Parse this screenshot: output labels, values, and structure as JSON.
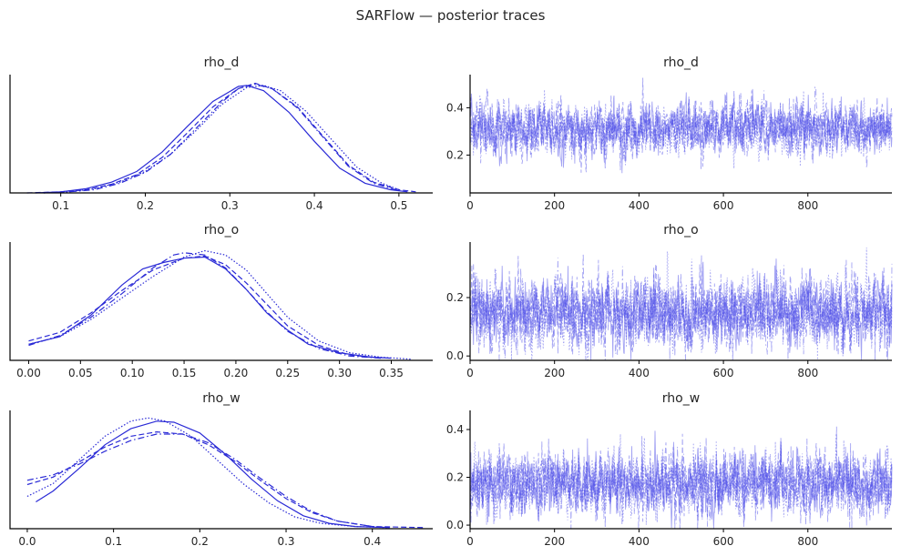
{
  "suptitle": "SARFlow — posterior traces",
  "colors": {
    "line": "#2a2ad6",
    "trace": "#4a4ae8",
    "axis": "#000000",
    "text": "#262626"
  },
  "chart_data": [
    {
      "type": "line",
      "kind": "density",
      "title": "rho_d",
      "xlim": [
        0.04,
        0.54
      ],
      "xticks": [
        0.1,
        0.2,
        0.3,
        0.4,
        0.5
      ],
      "xtick_labels": [
        "0.1",
        "0.2",
        "0.3",
        "0.4",
        "0.5"
      ],
      "ylim": [
        0,
        1.1
      ],
      "yticks": [],
      "series": [
        {
          "linestyle": "solid",
          "x": [
            0.07,
            0.1,
            0.13,
            0.16,
            0.19,
            0.22,
            0.25,
            0.28,
            0.31,
            0.32,
            0.34,
            0.37,
            0.4,
            0.43,
            0.46,
            0.49,
            0.51
          ],
          "y": [
            0.0,
            0.01,
            0.04,
            0.1,
            0.2,
            0.38,
            0.62,
            0.85,
            0.99,
            1.0,
            0.95,
            0.75,
            0.48,
            0.23,
            0.09,
            0.03,
            0.01
          ]
        },
        {
          "linestyle": "dashed",
          "x": [
            0.06,
            0.1,
            0.13,
            0.16,
            0.19,
            0.22,
            0.25,
            0.28,
            0.31,
            0.33,
            0.35,
            0.38,
            0.41,
            0.44,
            0.47,
            0.5,
            0.52
          ],
          "y": [
            0.0,
            0.01,
            0.03,
            0.08,
            0.17,
            0.33,
            0.56,
            0.8,
            0.97,
            1.02,
            0.97,
            0.8,
            0.53,
            0.26,
            0.1,
            0.03,
            0.01
          ]
        },
        {
          "linestyle": "dotted",
          "x": [
            0.08,
            0.11,
            0.14,
            0.17,
            0.2,
            0.23,
            0.26,
            0.29,
            0.32,
            0.34,
            0.36,
            0.39,
            0.42,
            0.45,
            0.48,
            0.5
          ],
          "y": [
            0.0,
            0.01,
            0.04,
            0.1,
            0.2,
            0.36,
            0.58,
            0.82,
            0.98,
            1.0,
            0.95,
            0.76,
            0.5,
            0.24,
            0.09,
            0.03
          ]
        },
        {
          "linestyle": "dashdot",
          "x": [
            0.08,
            0.11,
            0.14,
            0.17,
            0.2,
            0.23,
            0.26,
            0.29,
            0.31,
            0.33,
            0.35,
            0.38,
            0.41,
            0.44,
            0.47,
            0.5
          ],
          "y": [
            0.0,
            0.01,
            0.03,
            0.09,
            0.19,
            0.36,
            0.6,
            0.84,
            0.97,
            1.01,
            0.97,
            0.79,
            0.52,
            0.25,
            0.09,
            0.02
          ]
        }
      ]
    },
    {
      "type": "line",
      "kind": "trace",
      "title": "rho_d",
      "xlim": [
        0,
        999
      ],
      "xticks": [
        0,
        200,
        400,
        600,
        800
      ],
      "xtick_labels": [
        "0",
        "200",
        "400",
        "600",
        "800"
      ],
      "ylim": [
        0.04,
        0.54
      ],
      "yticks": [
        0.2,
        0.4
      ],
      "ytick_labels": [
        "0.2",
        "0.4"
      ],
      "mean": 0.31,
      "sd": 0.055,
      "n": 1000
    },
    {
      "type": "line",
      "kind": "density",
      "title": "rho_o",
      "xlim": [
        -0.018,
        0.39
      ],
      "xticks": [
        0.0,
        0.05,
        0.1,
        0.15,
        0.2,
        0.25,
        0.3,
        0.35
      ],
      "xtick_labels": [
        "0.00",
        "0.05",
        "0.10",
        "0.15",
        "0.20",
        "0.25",
        "0.30",
        "0.35"
      ],
      "ylim": [
        0,
        1.1
      ],
      "yticks": [],
      "series": [
        {
          "linestyle": "solid",
          "x": [
            0.0,
            0.03,
            0.06,
            0.09,
            0.11,
            0.13,
            0.15,
            0.17,
            0.19,
            0.21,
            0.23,
            0.25,
            0.27,
            0.3,
            0.33,
            0.35
          ],
          "y": [
            0.15,
            0.22,
            0.42,
            0.7,
            0.85,
            0.91,
            0.95,
            0.96,
            0.85,
            0.66,
            0.44,
            0.28,
            0.15,
            0.07,
            0.03,
            0.02
          ]
        },
        {
          "linestyle": "dashed",
          "x": [
            0.0,
            0.03,
            0.06,
            0.09,
            0.12,
            0.15,
            0.17,
            0.19,
            0.21,
            0.23,
            0.25,
            0.28,
            0.31,
            0.34
          ],
          "y": [
            0.18,
            0.26,
            0.44,
            0.65,
            0.84,
            0.95,
            0.97,
            0.89,
            0.72,
            0.52,
            0.32,
            0.14,
            0.05,
            0.02
          ]
        },
        {
          "linestyle": "dotted",
          "x": [
            0.0,
            0.03,
            0.06,
            0.09,
            0.12,
            0.15,
            0.17,
            0.19,
            0.21,
            0.23,
            0.25,
            0.28,
            0.31,
            0.34,
            0.37
          ],
          "y": [
            0.15,
            0.22,
            0.38,
            0.58,
            0.78,
            0.96,
            1.02,
            0.98,
            0.84,
            0.62,
            0.4,
            0.18,
            0.07,
            0.03,
            0.01
          ]
        },
        {
          "linestyle": "dashdot",
          "x": [
            0.0,
            0.03,
            0.06,
            0.09,
            0.12,
            0.14,
            0.15,
            0.17,
            0.19,
            0.21,
            0.23,
            0.25,
            0.28,
            0.31,
            0.34
          ],
          "y": [
            0.14,
            0.23,
            0.4,
            0.62,
            0.86,
            0.98,
            1.0,
            0.98,
            0.86,
            0.66,
            0.45,
            0.27,
            0.11,
            0.04,
            0.02
          ]
        }
      ]
    },
    {
      "type": "line",
      "kind": "trace",
      "title": "rho_o",
      "xlim": [
        0,
        999
      ],
      "xticks": [
        0,
        200,
        400,
        600,
        800
      ],
      "xtick_labels": [
        "0",
        "200",
        "400",
        "600",
        "800"
      ],
      "ylim": [
        -0.015,
        0.39
      ],
      "yticks": [
        0.0,
        0.2
      ],
      "ytick_labels": [
        "0.0",
        "0.2"
      ],
      "mean": 0.15,
      "sd": 0.06,
      "n": 1000
    },
    {
      "type": "line",
      "kind": "density",
      "title": "rho_w",
      "xlim": [
        -0.02,
        0.47
      ],
      "xticks": [
        0.0,
        0.1,
        0.2,
        0.3,
        0.4
      ],
      "xtick_labels": [
        "0.0",
        "0.1",
        "0.2",
        "0.3",
        "0.4"
      ],
      "ylim": [
        0,
        1.1
      ],
      "yticks": [],
      "series": [
        {
          "linestyle": "solid",
          "x": [
            0.01,
            0.03,
            0.06,
            0.09,
            0.12,
            0.15,
            0.17,
            0.2,
            0.23,
            0.26,
            0.29,
            0.32,
            0.35,
            0.38,
            0.42
          ],
          "y": [
            0.25,
            0.35,
            0.56,
            0.78,
            0.93,
            1.0,
            0.99,
            0.89,
            0.69,
            0.46,
            0.26,
            0.12,
            0.05,
            0.02,
            0.01
          ]
        },
        {
          "linestyle": "dashed",
          "x": [
            0.0,
            0.03,
            0.06,
            0.09,
            0.12,
            0.15,
            0.18,
            0.21,
            0.24,
            0.27,
            0.3,
            0.33,
            0.36,
            0.4,
            0.46
          ],
          "y": [
            0.41,
            0.48,
            0.62,
            0.76,
            0.86,
            0.9,
            0.88,
            0.78,
            0.63,
            0.45,
            0.28,
            0.15,
            0.07,
            0.02,
            0.01
          ]
        },
        {
          "linestyle": "dotted",
          "x": [
            0.0,
            0.03,
            0.06,
            0.09,
            0.12,
            0.14,
            0.16,
            0.19,
            0.22,
            0.25,
            0.28,
            0.31,
            0.34,
            0.38,
            0.42
          ],
          "y": [
            0.3,
            0.42,
            0.64,
            0.86,
            1.0,
            1.03,
            1.0,
            0.86,
            0.64,
            0.42,
            0.24,
            0.11,
            0.05,
            0.02,
            0.01
          ]
        },
        {
          "linestyle": "dashdot",
          "x": [
            0.0,
            0.03,
            0.06,
            0.09,
            0.12,
            0.15,
            0.18,
            0.21,
            0.24,
            0.27,
            0.3,
            0.33,
            0.36,
            0.4,
            0.42
          ],
          "y": [
            0.45,
            0.5,
            0.6,
            0.72,
            0.82,
            0.88,
            0.88,
            0.8,
            0.65,
            0.47,
            0.3,
            0.16,
            0.07,
            0.02,
            0.01
          ]
        }
      ]
    },
    {
      "type": "line",
      "kind": "trace",
      "title": "rho_w",
      "xlim": [
        0,
        999
      ],
      "xticks": [
        0,
        200,
        400,
        600,
        800
      ],
      "xtick_labels": [
        "0",
        "200",
        "400",
        "600",
        "800"
      ],
      "ylim": [
        -0.015,
        0.48
      ],
      "yticks": [
        0.0,
        0.2,
        0.4
      ],
      "ytick_labels": [
        "0.0",
        "0.2",
        "0.4"
      ],
      "mean": 0.17,
      "sd": 0.065,
      "n": 1000
    }
  ]
}
